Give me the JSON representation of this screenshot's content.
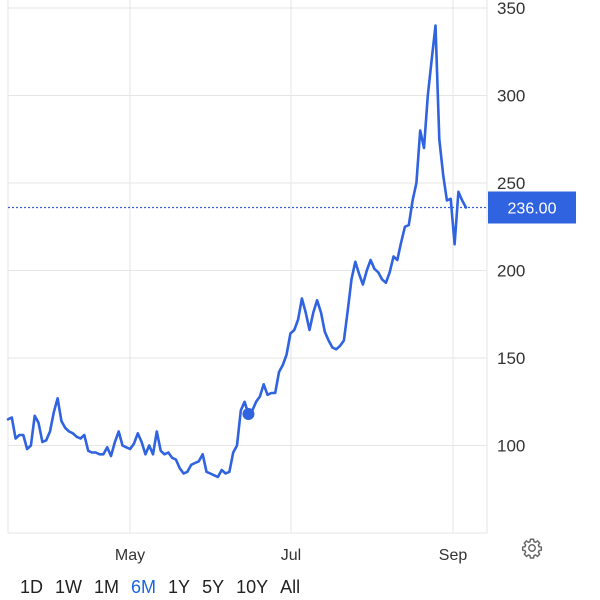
{
  "colors": {
    "line": "#2f63df",
    "accent": "#1a66e0",
    "label_bg": "#2f63df",
    "grid": "#e6e6e6",
    "dotted": "#3a5fd0"
  },
  "settings": {
    "icon": "gear-icon"
  },
  "range_selector": {
    "options": [
      "1D",
      "1W",
      "1M",
      "6M",
      "1Y",
      "5Y",
      "10Y",
      "All"
    ],
    "active": "6M"
  },
  "chart_data": {
    "type": "line",
    "title": "",
    "xlabel": "",
    "ylabel": "",
    "ylim": [
      50,
      350
    ],
    "y_ticks": [
      100,
      150,
      200,
      250,
      300,
      350
    ],
    "x_ticks": [
      "May",
      "Jul",
      "Sep"
    ],
    "grid": true,
    "y_axis_side": "right",
    "current_price": 236,
    "current_price_label": "236.00",
    "highlight_point_index": 63,
    "series": [
      {
        "values": [
          115,
          116,
          104,
          106,
          106,
          98,
          100,
          117,
          113,
          102,
          103,
          108,
          119,
          127,
          114,
          110,
          108,
          107,
          105,
          104,
          106,
          97,
          96,
          96,
          95,
          95,
          99,
          94,
          102,
          108,
          100,
          99,
          98,
          101,
          107,
          102,
          95,
          100,
          95,
          108,
          97,
          95,
          96,
          93,
          92,
          87,
          84,
          85,
          89,
          90,
          91,
          95,
          85,
          84,
          83,
          82,
          86,
          84,
          85,
          96,
          100,
          120,
          125,
          118,
          120,
          125,
          128,
          135,
          129,
          130,
          130,
          142,
          146,
          152,
          164,
          166,
          172,
          184,
          176,
          166,
          176,
          183,
          176,
          165,
          160,
          156,
          155,
          157,
          160,
          177,
          195,
          205,
          198,
          192,
          200,
          206,
          201,
          199,
          195,
          193,
          199,
          208,
          206,
          216,
          225,
          226,
          240,
          250,
          280,
          270,
          300,
          320,
          340,
          275,
          255,
          240,
          241,
          215,
          245,
          240,
          236
        ]
      }
    ]
  }
}
